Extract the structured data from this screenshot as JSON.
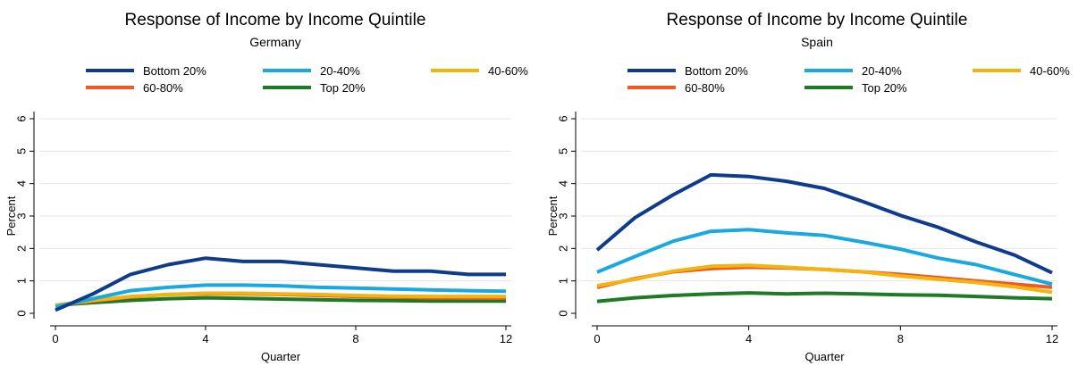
{
  "chart_data": [
    {
      "type": "line",
      "title": "Response of Income by Income Quintile",
      "subtitle": "Germany",
      "xlabel": "Quarter",
      "ylabel": "Percent",
      "xlim": [
        0,
        12
      ],
      "ylim": [
        0,
        6
      ],
      "xticks": [
        0,
        4,
        8,
        12
      ],
      "yticks": [
        0,
        1,
        2,
        3,
        4,
        5,
        6
      ],
      "grid": true,
      "legend_position": "top",
      "x": [
        0,
        1,
        2,
        3,
        4,
        5,
        6,
        7,
        8,
        9,
        10,
        11,
        12
      ],
      "series": [
        {
          "name": "Bottom 20%",
          "color": "#0e3b8c",
          "values": [
            0.1,
            0.6,
            1.2,
            1.5,
            1.7,
            1.6,
            1.6,
            1.5,
            1.4,
            1.3,
            1.3,
            1.2,
            1.2
          ]
        },
        {
          "name": "20-40%",
          "color": "#1aa8e0",
          "values": [
            0.2,
            0.45,
            0.7,
            0.8,
            0.87,
            0.87,
            0.85,
            0.8,
            0.78,
            0.75,
            0.72,
            0.7,
            0.68
          ]
        },
        {
          "name": "40-60%",
          "color": "#f2b411",
          "values": [
            0.25,
            0.4,
            0.52,
            0.58,
            0.62,
            0.62,
            0.6,
            0.58,
            0.55,
            0.53,
            0.52,
            0.52,
            0.52
          ]
        },
        {
          "name": "60-80%",
          "color": "#ee5a24",
          "values": [
            0.25,
            0.38,
            0.5,
            0.58,
            0.6,
            0.6,
            0.58,
            0.55,
            0.52,
            0.5,
            0.48,
            0.47,
            0.47
          ]
        },
        {
          "name": "Top 20%",
          "color": "#1e7a25",
          "values": [
            0.25,
            0.33,
            0.4,
            0.45,
            0.48,
            0.46,
            0.44,
            0.42,
            0.4,
            0.39,
            0.38,
            0.38,
            0.38
          ]
        }
      ]
    },
    {
      "type": "line",
      "title": "Response of Income by Income Quintile",
      "subtitle": "Spain",
      "xlabel": "Quarter",
      "ylabel": "Percent",
      "xlim": [
        0,
        12
      ],
      "ylim": [
        0,
        6
      ],
      "xticks": [
        0,
        4,
        8,
        12
      ],
      "xtick_labels": [
        "0",
        "4",
        "8",
        "12"
      ],
      "yticks": [
        0,
        1,
        2,
        3,
        4,
        5,
        6
      ],
      "grid": true,
      "legend_position": "top",
      "x": [
        0,
        1,
        2,
        3,
        4,
        5,
        6,
        7,
        8,
        9,
        10,
        11,
        12
      ],
      "series": [
        {
          "name": "Bottom 20%",
          "color": "#0e3b8c",
          "values": [
            1.95,
            2.95,
            3.65,
            4.27,
            4.22,
            4.07,
            3.85,
            3.45,
            3.02,
            2.65,
            2.2,
            1.8,
            1.25
          ]
        },
        {
          "name": "20-40%",
          "color": "#1aa8e0",
          "values": [
            1.27,
            1.75,
            2.22,
            2.53,
            2.58,
            2.48,
            2.4,
            2.2,
            1.98,
            1.7,
            1.5,
            1.2,
            0.9
          ]
        },
        {
          "name": "40-60%",
          "color": "#f2b411",
          "values": [
            0.85,
            1.05,
            1.3,
            1.45,
            1.48,
            1.42,
            1.35,
            1.28,
            1.15,
            1.05,
            0.95,
            0.82,
            0.65
          ]
        },
        {
          "name": "60-80%",
          "color": "#ee5a24",
          "values": [
            0.8,
            1.07,
            1.28,
            1.38,
            1.42,
            1.4,
            1.35,
            1.28,
            1.2,
            1.1,
            1.0,
            0.9,
            0.8
          ]
        },
        {
          "name": "Top 20%",
          "color": "#1e7a25",
          "values": [
            0.37,
            0.48,
            0.55,
            0.6,
            0.63,
            0.6,
            0.62,
            0.6,
            0.57,
            0.56,
            0.52,
            0.48,
            0.45
          ]
        }
      ]
    }
  ]
}
